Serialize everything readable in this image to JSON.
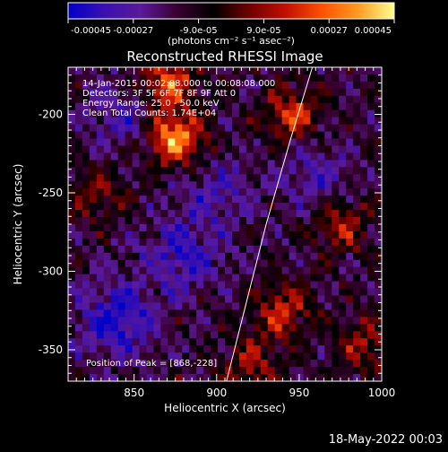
{
  "chart_data": {
    "type": "heatmap",
    "title": "Reconstructed RHESSI Image",
    "xlabel": "Heliocentric X (arcsec)",
    "ylabel": "Heliocentric Y (arcsec)",
    "xlim": [
      810,
      1000
    ],
    "ylim": [
      -370,
      -170
    ],
    "x_ticks": [
      850,
      900,
      950,
      1000
    ],
    "y_ticks": [
      -200,
      -250,
      -300,
      -350
    ],
    "colorbar": {
      "min": -0.00045,
      "max": 0.00045,
      "ticks": [
        "-0.00045",
        "-0.00027",
        "-9.0e-05",
        "9.0e-05",
        "0.00027",
        "0.00045"
      ],
      "unit_label": "(photons cm⁻² s⁻¹ asec⁻²)",
      "colormap": [
        "#0000c8",
        "#3a10b0",
        "#5a1a9a",
        "#3a0030",
        "#000000",
        "#700000",
        "#c01000",
        "#ff5000",
        "#ff9a20",
        "#ffff90"
      ]
    },
    "annotations": [
      "14-Jan-2015 00:02:08.000 to 00:08:08.000",
      "Detectors: 3F 5F 6F 7F 8F 9F  Att 0",
      "Energy Range: 25.0 - 50.0 keV",
      "Clean     Total Counts: 1.74E+04"
    ],
    "peak_label": "Position of Peak = [868,-228]",
    "peak": [
      868,
      -228
    ],
    "limb_curve": {
      "x": [
        906,
        918,
        930,
        945,
        958
      ],
      "y": [
        -370,
        -320,
        -270,
        -215,
        -170
      ]
    },
    "sources": [
      {
        "x": 875,
        "y": -215,
        "strength": 1.0
      },
      {
        "x": 870,
        "y": -180,
        "strength": 0.75
      },
      {
        "x": 945,
        "y": -200,
        "strength": 0.6
      },
      {
        "x": 940,
        "y": -325,
        "strength": 0.55
      },
      {
        "x": 975,
        "y": -270,
        "strength": 0.5
      },
      {
        "x": 920,
        "y": -360,
        "strength": 0.45
      },
      {
        "x": 830,
        "y": -250,
        "strength": 0.35
      },
      {
        "x": 990,
        "y": -345,
        "strength": 0.45
      }
    ],
    "sinks": [
      {
        "x": 840,
        "y": -330,
        "strength": 0.9
      },
      {
        "x": 880,
        "y": -290,
        "strength": 0.7
      },
      {
        "x": 845,
        "y": -200,
        "strength": 0.5
      },
      {
        "x": 960,
        "y": -240,
        "strength": 0.5
      },
      {
        "x": 900,
        "y": -250,
        "strength": 0.5
      }
    ]
  },
  "footer": {
    "date": "18-May-2022 00:03"
  }
}
